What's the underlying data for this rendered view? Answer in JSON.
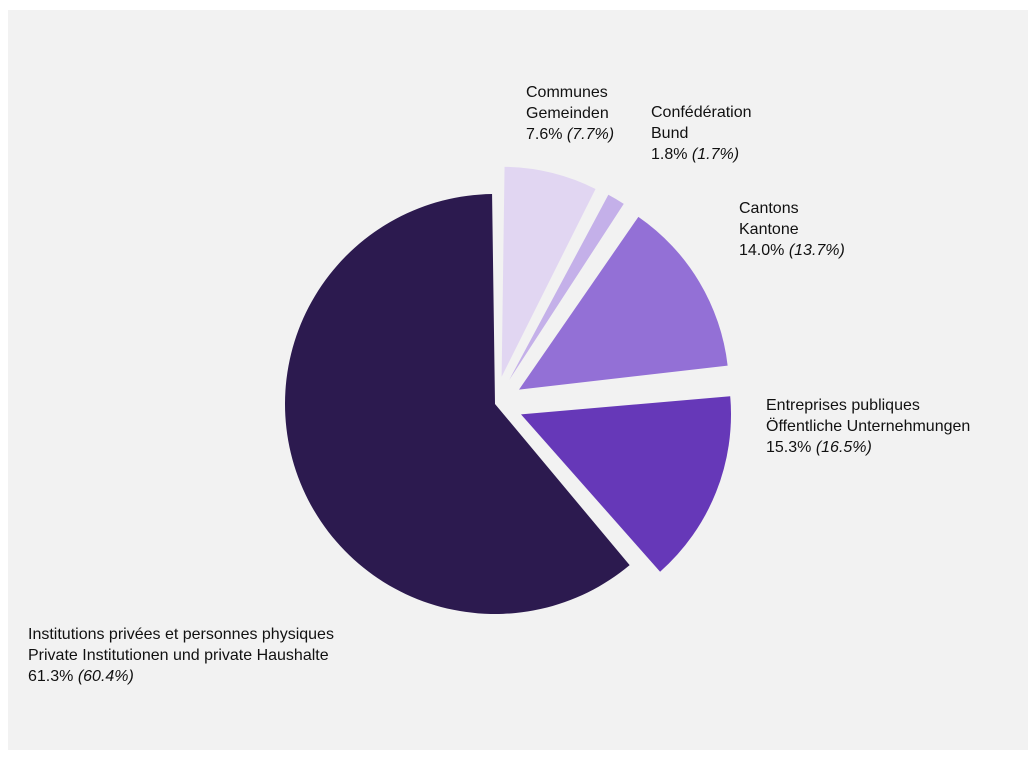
{
  "chart_data": {
    "type": "pie",
    "title": "",
    "slices": [
      {
        "name_fr": "Communes",
        "name_de": "Gemeinden",
        "value": 7.6,
        "value_label": "7.6%",
        "previous_label": "(7.7%)",
        "color": "#e1d6f2"
      },
      {
        "name_fr": "Confédération",
        "name_de": "Bund",
        "value": 1.8,
        "value_label": "1.8%",
        "previous_label": "(1.7%)",
        "color": "#c4b0e9"
      },
      {
        "name_fr": "Cantons",
        "name_de": "Kantone",
        "value": 14.0,
        "value_label": "14.0%",
        "previous_label": "(13.7%)",
        "color": "#9370d6"
      },
      {
        "name_fr": "Entreprises publiques",
        "name_de": "Öffentliche Unternehmungen",
        "value": 15.3,
        "value_label": "15.3%",
        "previous_label": "(16.5%)",
        "color": "#6638b8"
      },
      {
        "name_fr": "Institutions privées et personnes physiques",
        "name_de": "Private Institutionen und private Haushalte",
        "value": 61.3,
        "value_label": "61.3%",
        "previous_label": "(60.4%)",
        "color": "#2c1a4f"
      }
    ],
    "legend": "none",
    "background_color": "#f2f2f2"
  }
}
